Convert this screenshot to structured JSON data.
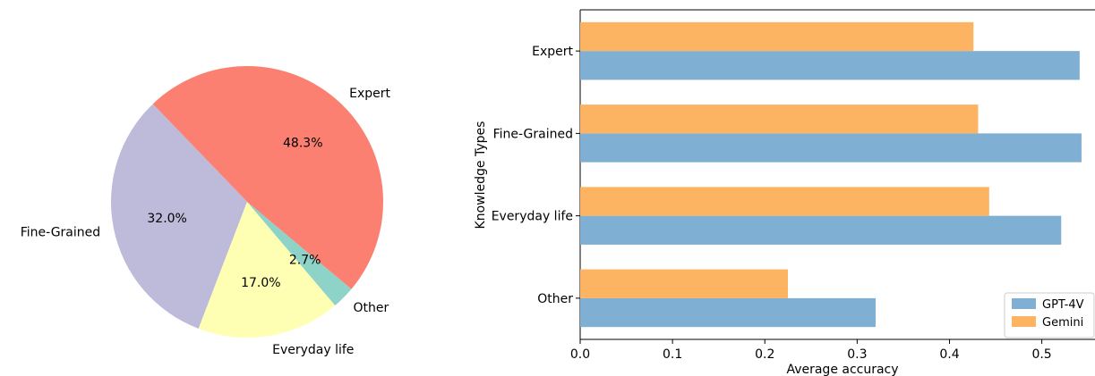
{
  "chart_data": [
    {
      "type": "pie",
      "slices": [
        {
          "label": "Expert",
          "pct_label": "48.3%",
          "value": 48.3,
          "color": "#fb8072"
        },
        {
          "label": "Fine-Grained",
          "pct_label": "32.0%",
          "value": 32.0,
          "color": "#bebada"
        },
        {
          "label": "Everyday life",
          "pct_label": "17.0%",
          "value": 17.0,
          "color": "#ffffb3"
        },
        {
          "label": "Other",
          "pct_label": "2.7%",
          "value": 2.7,
          "color": "#8dd3c7"
        }
      ]
    },
    {
      "type": "bar",
      "orientation": "horizontal",
      "categories": [
        "Other",
        "Everyday life",
        "Fine-Grained",
        "Expert"
      ],
      "series": [
        {
          "name": "GPT-4V",
          "color": "#7fb0d3",
          "values": [
            0.32,
            0.521,
            0.543,
            0.541
          ]
        },
        {
          "name": "Gemini",
          "color": "#fdb462",
          "values": [
            0.225,
            0.443,
            0.431,
            0.426
          ]
        }
      ],
      "xlabel": "Average accuracy",
      "ylabel": "Knowledge Types",
      "xlim": [
        0,
        0.545
      ],
      "xticks": [
        "0.0",
        "0.1",
        "0.2",
        "0.3",
        "0.4",
        "0.5"
      ],
      "legend": "lower-right"
    }
  ]
}
